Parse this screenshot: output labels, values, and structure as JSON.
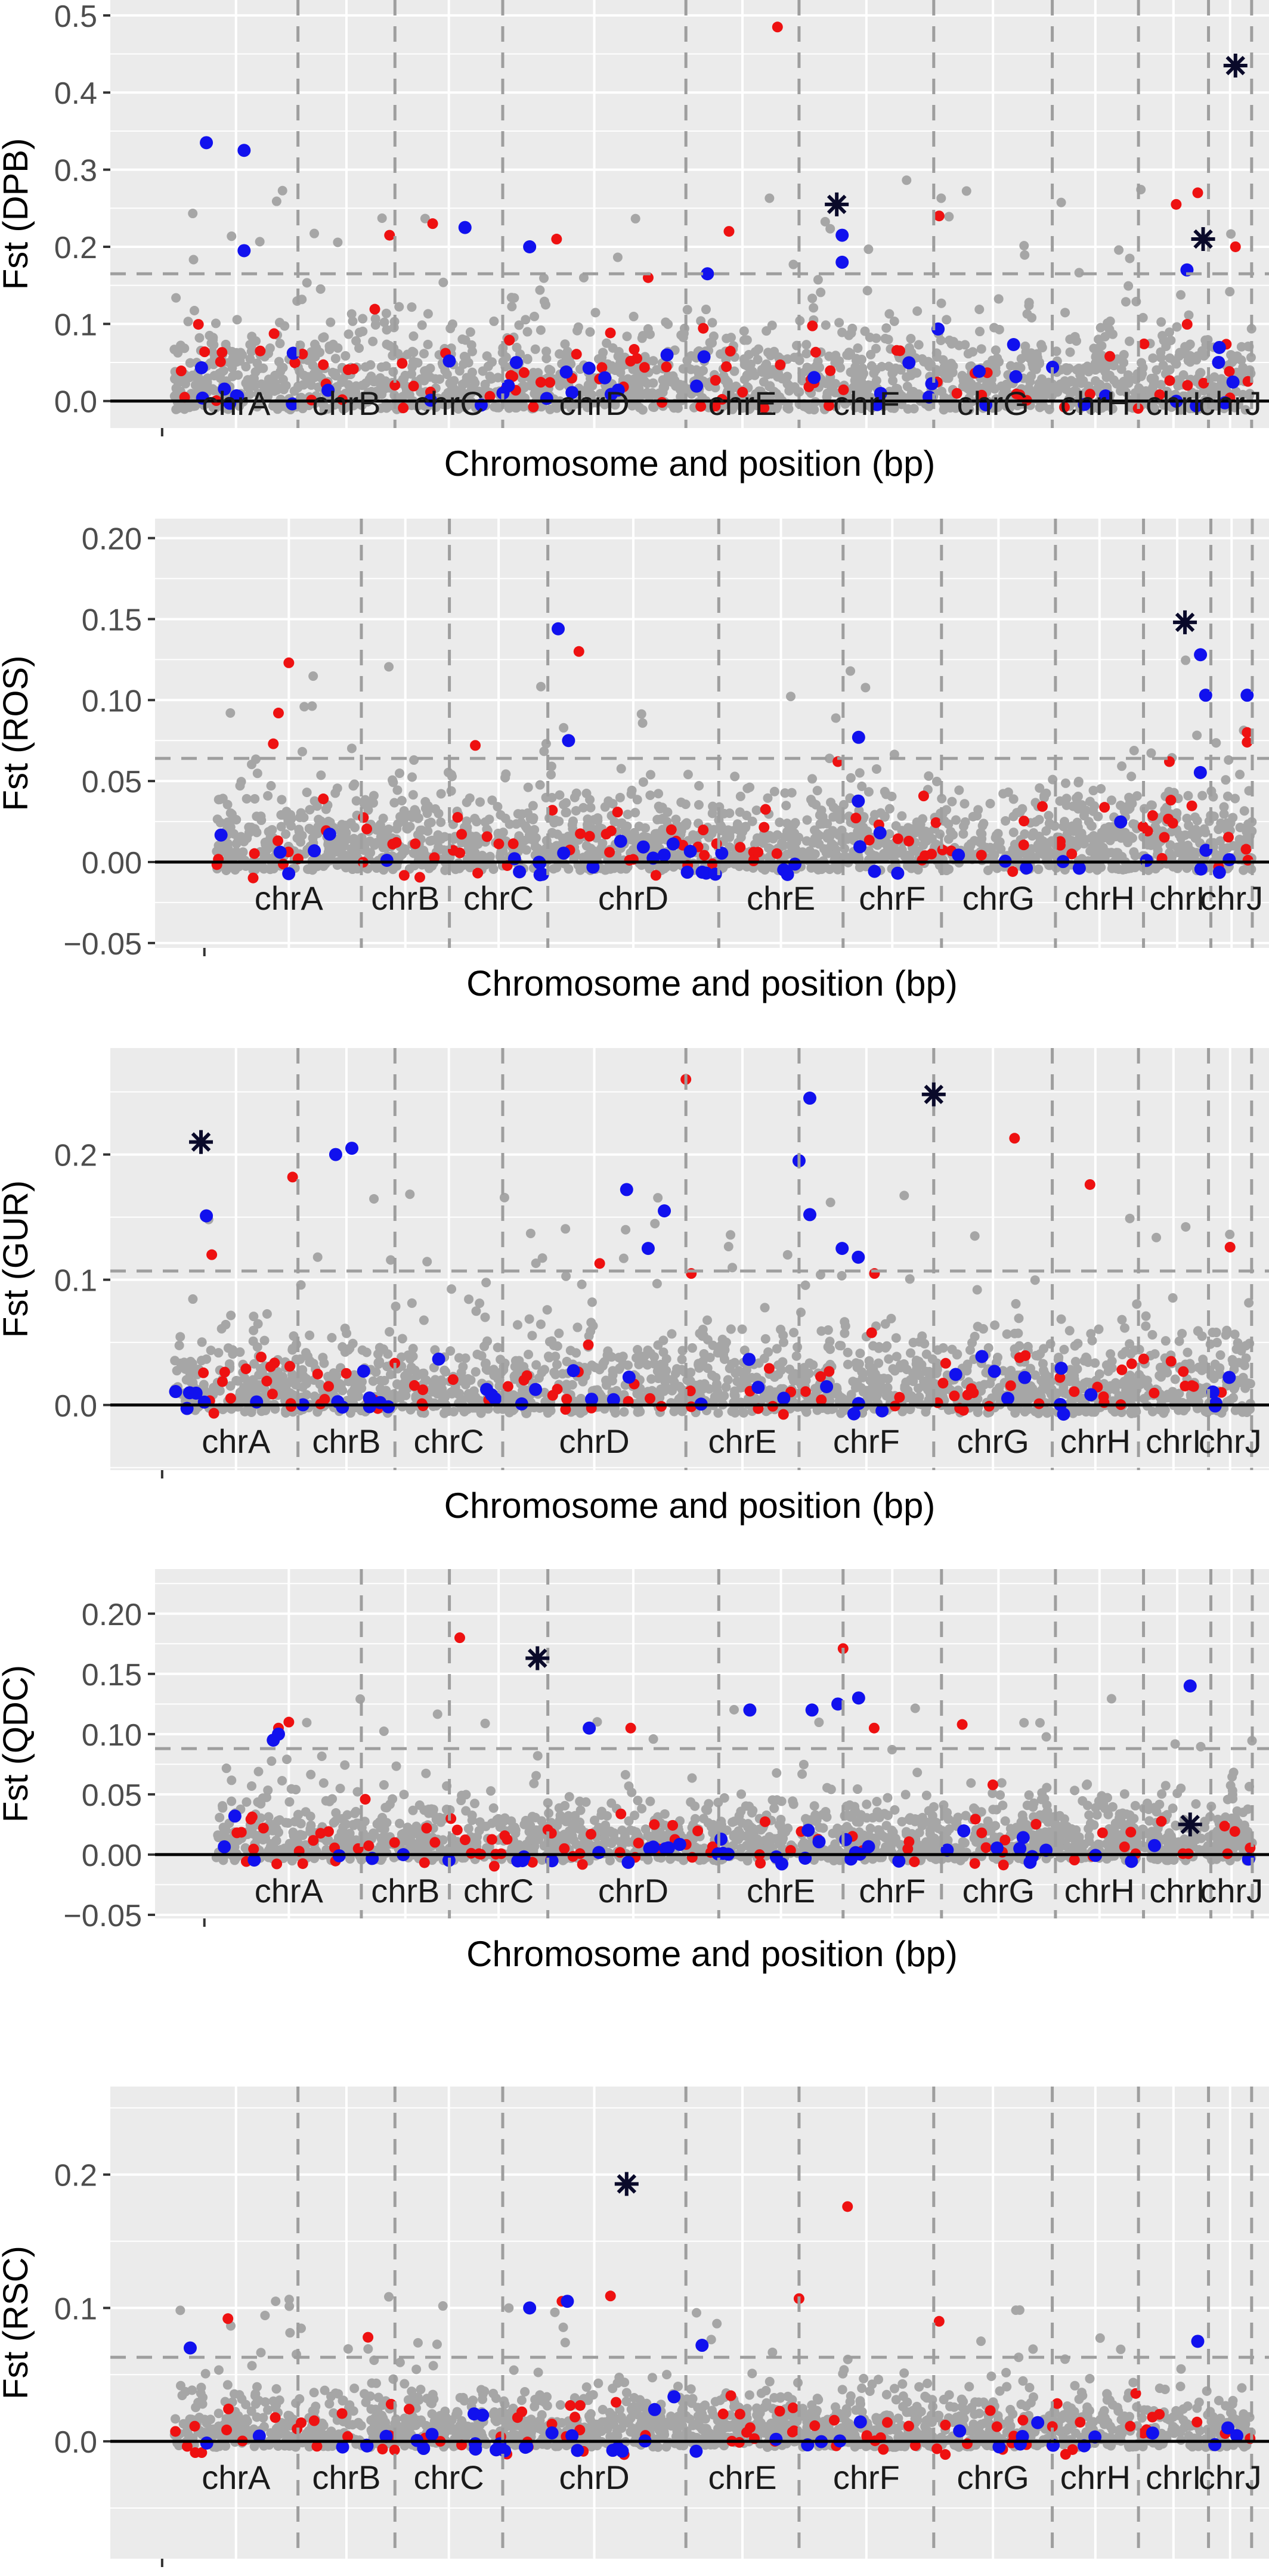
{
  "figure": {
    "x_axis_title": "Chromosome and position (bp)",
    "chromosomes": [
      "chrA",
      "chrB",
      "chrC",
      "chrD",
      "chrE",
      "chrF",
      "chrG",
      "chrH",
      "chrI",
      "chrJ"
    ],
    "colors": {
      "panel_background": "#ebebeb",
      "grid": "#ffffff",
      "background_points": "#a6a6a6",
      "red_points": "#ee1111",
      "blue_points": "#1111ee",
      "threshold_line": "#9e9e9e",
      "boundary_line": "#9e9e9e",
      "zero_line": "#000000",
      "star_marker": "#0a0a2a"
    }
  },
  "chart_data": [
    {
      "type": "scatter",
      "ylabel": "Fst (DPB)",
      "xlabel": "Chromosome and position (bp)",
      "ylim": [
        -0.035,
        0.52
      ],
      "yticks": [
        0.0,
        0.1,
        0.2,
        0.3,
        0.4,
        0.5
      ],
      "ytick_labels": [
        "0.0",
        "0.1",
        "0.2",
        "0.3",
        "0.4",
        "0.5"
      ],
      "threshold": 0.165,
      "background_max": 0.29,
      "chr_ranges": [
        [
          0.0,
          0.115
        ],
        [
          0.115,
          0.205
        ],
        [
          0.205,
          0.305
        ],
        [
          0.305,
          0.475
        ],
        [
          0.475,
          0.58
        ],
        [
          0.58,
          0.705
        ],
        [
          0.705,
          0.815
        ],
        [
          0.815,
          0.895
        ],
        [
          0.895,
          0.96
        ],
        [
          0.96,
          1.0
        ]
      ],
      "outliers_red": [
        [
          0.2,
          0.215
        ],
        [
          0.355,
          0.21
        ],
        [
          0.515,
          0.22
        ],
        [
          0.56,
          0.485
        ],
        [
          0.71,
          0.24
        ],
        [
          0.93,
          0.255
        ],
        [
          0.95,
          0.27
        ],
        [
          0.985,
          0.2
        ],
        [
          0.44,
          0.16
        ],
        [
          0.24,
          0.23
        ]
      ],
      "outliers_blue": [
        [
          0.03,
          0.335
        ],
        [
          0.065,
          0.325
        ],
        [
          0.27,
          0.225
        ],
        [
          0.62,
          0.215
        ],
        [
          0.62,
          0.18
        ],
        [
          0.33,
          0.2
        ],
        [
          0.495,
          0.165
        ],
        [
          0.94,
          0.17
        ],
        [
          0.065,
          0.195
        ]
      ],
      "stars": [
        [
          0.615,
          0.255
        ],
        [
          0.955,
          0.21
        ],
        [
          0.985,
          0.435
        ]
      ]
    },
    {
      "type": "scatter",
      "ylabel": "Fst (ROS)",
      "xlabel": "Chromosome and position (bp)",
      "ylim": [
        -0.053,
        0.212
      ],
      "yticks": [
        -0.05,
        0.0,
        0.05,
        0.1,
        0.15,
        0.2
      ],
      "ytick_labels": [
        "−0.05",
        "0.00",
        "0.05",
        "0.10",
        "0.15",
        "0.20"
      ],
      "threshold": 0.064,
      "background_max": 0.13,
      "chr_ranges": [
        [
          0.0,
          0.14
        ],
        [
          0.14,
          0.225
        ],
        [
          0.225,
          0.32
        ],
        [
          0.32,
          0.485
        ],
        [
          0.485,
          0.605
        ],
        [
          0.605,
          0.7
        ],
        [
          0.7,
          0.81
        ],
        [
          0.81,
          0.895
        ],
        [
          0.895,
          0.96
        ],
        [
          0.96,
          1.0
        ]
      ],
      "outliers_red": [
        [
          0.07,
          0.123
        ],
        [
          0.35,
          0.13
        ],
        [
          0.06,
          0.092
        ],
        [
          0.055,
          0.073
        ],
        [
          0.25,
          0.072
        ],
        [
          0.6,
          0.062
        ],
        [
          0.92,
          0.062
        ],
        [
          0.995,
          0.08
        ],
        [
          0.995,
          0.074
        ]
      ],
      "outliers_blue": [
        [
          0.33,
          0.144
        ],
        [
          0.95,
          0.128
        ],
        [
          0.955,
          0.103
        ],
        [
          0.995,
          0.103
        ],
        [
          0.62,
          0.077
        ],
        [
          0.34,
          0.075
        ]
      ],
      "stars": [
        [
          0.935,
          0.148
        ]
      ]
    },
    {
      "type": "scatter",
      "ylabel": "Fst (GUR)",
      "xlabel": "Chromosome and position (bp)",
      "ylim": [
        -0.052,
        0.285
      ],
      "yticks": [
        0.0,
        0.1,
        0.2
      ],
      "ytick_labels": [
        "0.0",
        "0.1",
        "0.2"
      ],
      "threshold": 0.107,
      "background_max": 0.17,
      "chr_ranges": [
        [
          0.0,
          0.115
        ],
        [
          0.115,
          0.205
        ],
        [
          0.205,
          0.305
        ],
        [
          0.305,
          0.475
        ],
        [
          0.475,
          0.58
        ],
        [
          0.58,
          0.705
        ],
        [
          0.705,
          0.815
        ],
        [
          0.815,
          0.895
        ],
        [
          0.895,
          0.96
        ],
        [
          0.96,
          1.0
        ]
      ],
      "outliers_red": [
        [
          0.475,
          0.26
        ],
        [
          0.78,
          0.213
        ],
        [
          0.85,
          0.176
        ],
        [
          0.11,
          0.182
        ],
        [
          0.395,
          0.113
        ],
        [
          0.48,
          0.105
        ],
        [
          0.98,
          0.126
        ],
        [
          0.035,
          0.12
        ],
        [
          0.65,
          0.105
        ]
      ],
      "outliers_blue": [
        [
          0.59,
          0.245
        ],
        [
          0.58,
          0.195
        ],
        [
          0.15,
          0.2
        ],
        [
          0.165,
          0.205
        ],
        [
          0.42,
          0.172
        ],
        [
          0.455,
          0.155
        ],
        [
          0.59,
          0.152
        ],
        [
          0.03,
          0.151
        ],
        [
          0.44,
          0.125
        ],
        [
          0.62,
          0.125
        ],
        [
          0.635,
          0.118
        ]
      ],
      "stars": [
        [
          0.025,
          0.21
        ],
        [
          0.705,
          0.248
        ]
      ]
    },
    {
      "type": "scatter",
      "ylabel": "Fst (QDC)",
      "xlabel": "Chromosome and position (bp)",
      "ylim": [
        -0.053,
        0.237
      ],
      "yticks": [
        -0.05,
        0.0,
        0.05,
        0.1,
        0.15,
        0.2
      ],
      "ytick_labels": [
        "−0.05",
        "0.00",
        "0.05",
        "0.10",
        "0.15",
        "0.20"
      ],
      "threshold": 0.088,
      "background_max": 0.13,
      "chr_ranges": [
        [
          0.0,
          0.14
        ],
        [
          0.14,
          0.225
        ],
        [
          0.225,
          0.32
        ],
        [
          0.32,
          0.485
        ],
        [
          0.485,
          0.605
        ],
        [
          0.605,
          0.7
        ],
        [
          0.7,
          0.81
        ],
        [
          0.81,
          0.895
        ],
        [
          0.895,
          0.96
        ],
        [
          0.96,
          1.0
        ]
      ],
      "outliers_red": [
        [
          0.235,
          0.18
        ],
        [
          0.605,
          0.171
        ],
        [
          0.07,
          0.11
        ],
        [
          0.06,
          0.105
        ],
        [
          0.72,
          0.108
        ],
        [
          0.4,
          0.105
        ],
        [
          0.635,
          0.105
        ]
      ],
      "outliers_blue": [
        [
          0.62,
          0.13
        ],
        [
          0.6,
          0.125
        ],
        [
          0.575,
          0.12
        ],
        [
          0.515,
          0.12
        ],
        [
          0.94,
          0.14
        ],
        [
          0.055,
          0.095
        ],
        [
          0.06,
          0.1
        ],
        [
          0.36,
          0.105
        ]
      ],
      "stars": [
        [
          0.31,
          0.163
        ],
        [
          0.94,
          0.025
        ]
      ]
    },
    {
      "type": "scatter",
      "ylabel": "Fst (RSC)",
      "xlabel": "Chromosome and position (bp)",
      "ylim": [
        -0.088,
        0.266
      ],
      "yticks": [
        0.0,
        0.1,
        0.2
      ],
      "ytick_labels": [
        "0.0",
        "0.1",
        "0.2"
      ],
      "threshold": 0.063,
      "background_max": 0.11,
      "chr_ranges": [
        [
          0.0,
          0.115
        ],
        [
          0.115,
          0.205
        ],
        [
          0.205,
          0.305
        ],
        [
          0.305,
          0.475
        ],
        [
          0.475,
          0.58
        ],
        [
          0.58,
          0.705
        ],
        [
          0.705,
          0.815
        ],
        [
          0.815,
          0.895
        ],
        [
          0.895,
          0.96
        ],
        [
          0.96,
          1.0
        ]
      ],
      "outliers_red": [
        [
          0.625,
          0.176
        ],
        [
          0.58,
          0.107
        ],
        [
          0.405,
          0.109
        ],
        [
          0.36,
          0.105
        ],
        [
          0.71,
          0.09
        ],
        [
          0.05,
          0.092
        ],
        [
          0.18,
          0.078
        ]
      ],
      "outliers_blue": [
        [
          0.33,
          0.1
        ],
        [
          0.365,
          0.105
        ],
        [
          0.015,
          0.07
        ],
        [
          0.95,
          0.075
        ],
        [
          0.49,
          0.072
        ]
      ],
      "stars": [
        [
          0.42,
          0.193
        ]
      ]
    }
  ]
}
